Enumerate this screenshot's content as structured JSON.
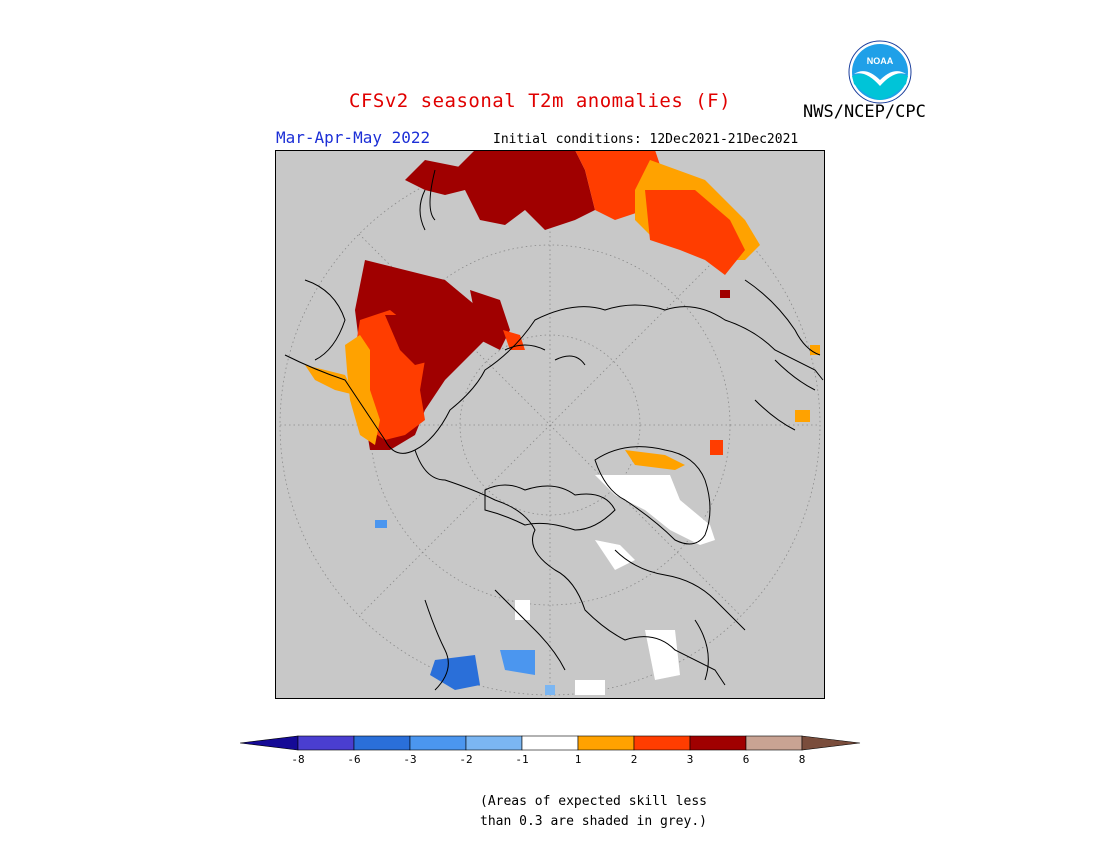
{
  "header": {
    "title": "CFSv2 seasonal T2m anomalies (F)",
    "organization": "NWS/NCEP/CPC",
    "season": "Mar-Apr-May 2022",
    "initial_conditions": "Initial conditions: 12Dec2021-21Dec2021"
  },
  "logo": {
    "text": "NOAA",
    "icon": "noaa-logo-icon",
    "colors": {
      "sky": "#1fa0e8",
      "water": "#00c4d8",
      "bird": "#ffffff"
    }
  },
  "map": {
    "projection": "north polar stereographic",
    "background": "#c8c8c8",
    "skill_mask_note": "grey = expected skill less than 0.3"
  },
  "legend": {
    "labels": [
      "-8",
      "-6",
      "-3",
      "-2",
      "-1",
      "1",
      "2",
      "3",
      "6",
      "8"
    ],
    "colors": [
      "#150a96",
      "#4a3ed0",
      "#2a6fd9",
      "#4b96ef",
      "#7bb6f2",
      "#ffffff",
      "#ffa200",
      "#ff3d00",
      "#a00000",
      "#c9a393",
      "#7a4d3c"
    ]
  },
  "footer": {
    "note_line1": "(Areas of expected skill less",
    "note_line2": "than 0.3 are shaded in grey.)"
  }
}
